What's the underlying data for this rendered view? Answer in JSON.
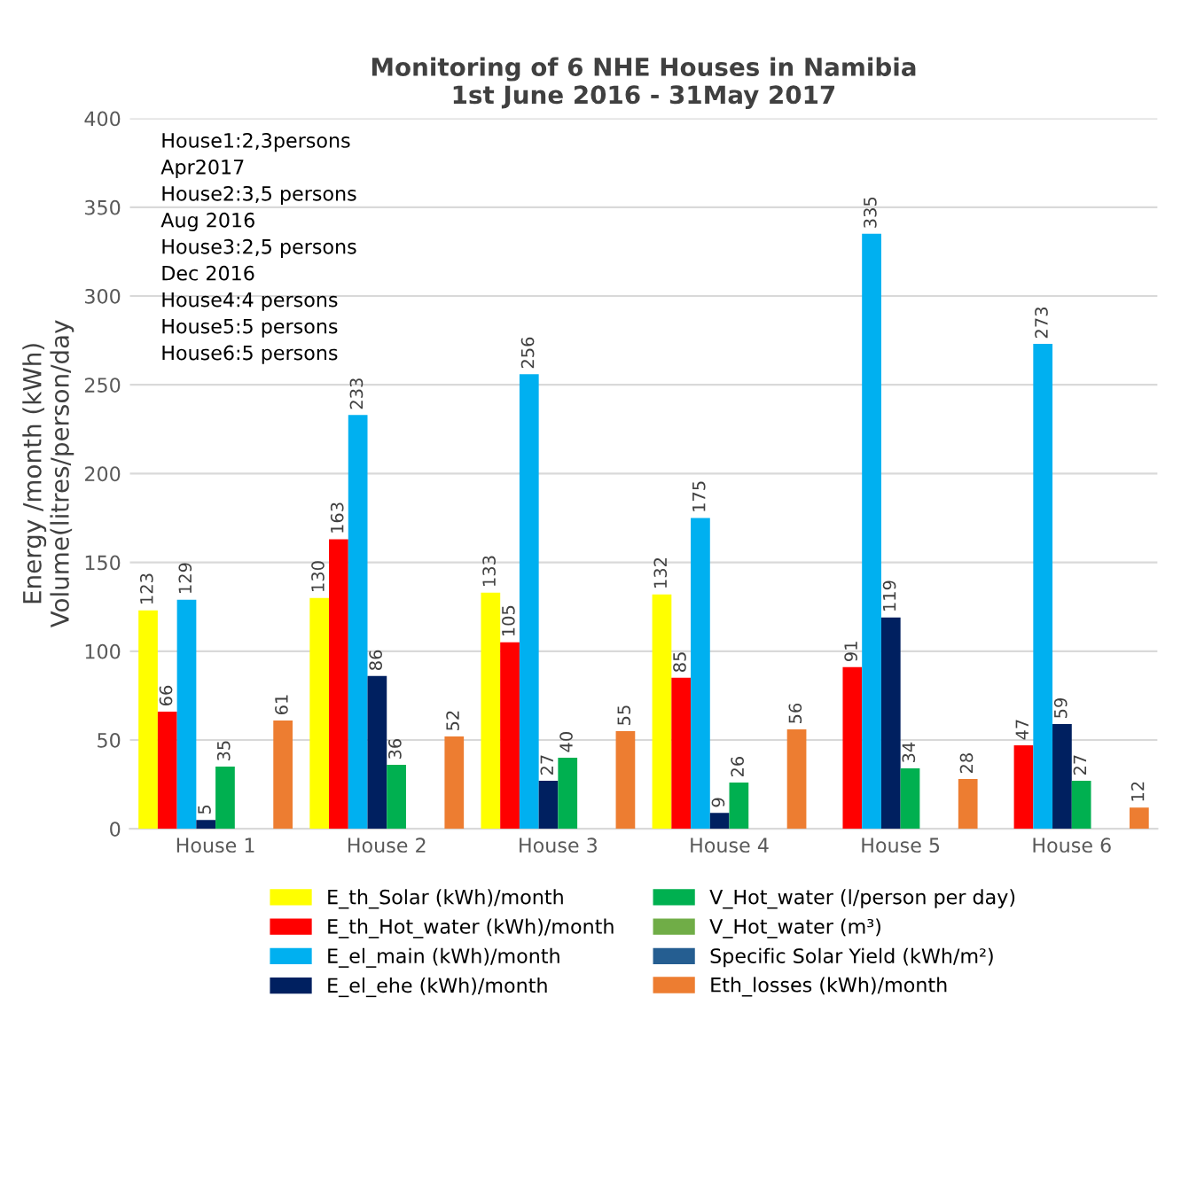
{
  "chart_data": {
    "type": "bar",
    "title": "Monitoring of 6 NHE Houses in Namibia\n1st June 2016 - 31May 2017",
    "ylabel": "Energy /month (kWh)\nVolume(litres/person/day",
    "categories": [
      "House 1",
      "House 2",
      "House 3",
      "House 4",
      "House 5",
      "House 6"
    ],
    "series": [
      {
        "name": "E_th_Solar (kWh)/month",
        "color": "#ffff00",
        "values": [
          123,
          130,
          133,
          132,
          null,
          null
        ]
      },
      {
        "name": "E_th_Hot_water (kWh)/month",
        "color": "#ff0000",
        "values": [
          66,
          163,
          105,
          85,
          91,
          47
        ]
      },
      {
        "name": "E_el_main (kWh)/month",
        "color": "#00b0f0",
        "values": [
          129,
          233,
          256,
          175,
          335,
          273
        ]
      },
      {
        "name": "E_el_ehe (kWh)/month",
        "color": "#002060",
        "values": [
          5,
          86,
          27,
          9,
          119,
          59
        ]
      },
      {
        "name": "V_Hot_water (l/person per day)",
        "color": "#00b050",
        "values": [
          35,
          36,
          40,
          26,
          34,
          27
        ]
      },
      {
        "name": "V_Hot_water (m³)",
        "color": "#70ad47",
        "values": [
          null,
          null,
          null,
          null,
          null,
          null
        ]
      },
      {
        "name": "Specific Solar Yield (kWh/m²)",
        "color": "#255e91",
        "values": [
          null,
          null,
          null,
          null,
          null,
          null
        ]
      },
      {
        "name": "Eth_losses (kWh)/month",
        "color": "#ed7d31",
        "values": [
          61,
          52,
          55,
          56,
          28,
          12
        ]
      }
    ],
    "ylim": [
      0,
      400
    ],
    "yticks": [
      0,
      50,
      100,
      150,
      200,
      250,
      300,
      350,
      400
    ],
    "grid": "y",
    "legend": "bottom",
    "data_labels": true,
    "annotations": [
      "House1:2,3persons\nApr2017\nHouse2:3,5 persons\nAug 2016\nHouse3:2,5 persons\nDec 2016\nHouse4:4 persons\nHouse5:5 persons\nHouse6:5 persons"
    ]
  }
}
